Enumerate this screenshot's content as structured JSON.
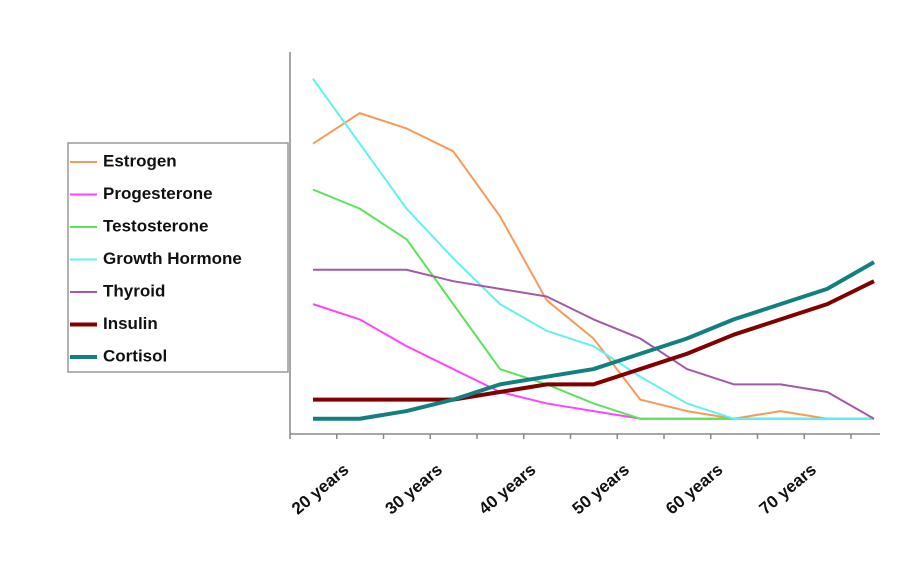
{
  "chart_data": {
    "type": "line",
    "categories": [
      "20 years",
      null,
      "30 years",
      null,
      "40 years",
      null,
      "50 years",
      null,
      "60 years",
      null,
      "70 years",
      null,
      null
    ],
    "ylim": [
      0,
      100
    ],
    "legend": "left",
    "series": [
      {
        "name": "Estrogen",
        "color": "#f79a5a",
        "width": 2,
        "values": [
          76,
          84,
          80,
          74,
          57,
          35,
          25,
          9,
          6,
          4,
          6,
          4,
          4
        ]
      },
      {
        "name": "Progesterone",
        "color": "#ff44ff",
        "width": 2,
        "values": [
          34,
          30,
          23,
          17,
          11,
          8,
          6,
          4,
          4,
          4,
          4,
          4,
          4
        ]
      },
      {
        "name": "Testosterone",
        "color": "#5be35b",
        "width": 2,
        "values": [
          64,
          59,
          51,
          34,
          17,
          13,
          8,
          4,
          4,
          4,
          4,
          4,
          4
        ]
      },
      {
        "name": "Growth Hormone",
        "color": "#5ff2f2",
        "width": 2,
        "values": [
          93,
          76,
          59,
          46,
          34,
          27,
          23,
          15,
          8,
          4,
          4,
          4,
          4
        ]
      },
      {
        "name": "Thyroid",
        "color": "#a359a8",
        "width": 2,
        "values": [
          43,
          43,
          43,
          40,
          38,
          36,
          30,
          25,
          17,
          13,
          13,
          11,
          4
        ]
      },
      {
        "name": "Insulin",
        "color": "#800000",
        "width": 4,
        "values": [
          9,
          9,
          9,
          9,
          11,
          13,
          13,
          17,
          21,
          26,
          30,
          34,
          40
        ]
      },
      {
        "name": "Cortisol",
        "color": "#138080",
        "width": 4,
        "values": [
          4,
          4,
          6,
          9,
          13,
          15,
          17,
          21,
          25,
          30,
          34,
          38,
          45
        ]
      }
    ]
  }
}
